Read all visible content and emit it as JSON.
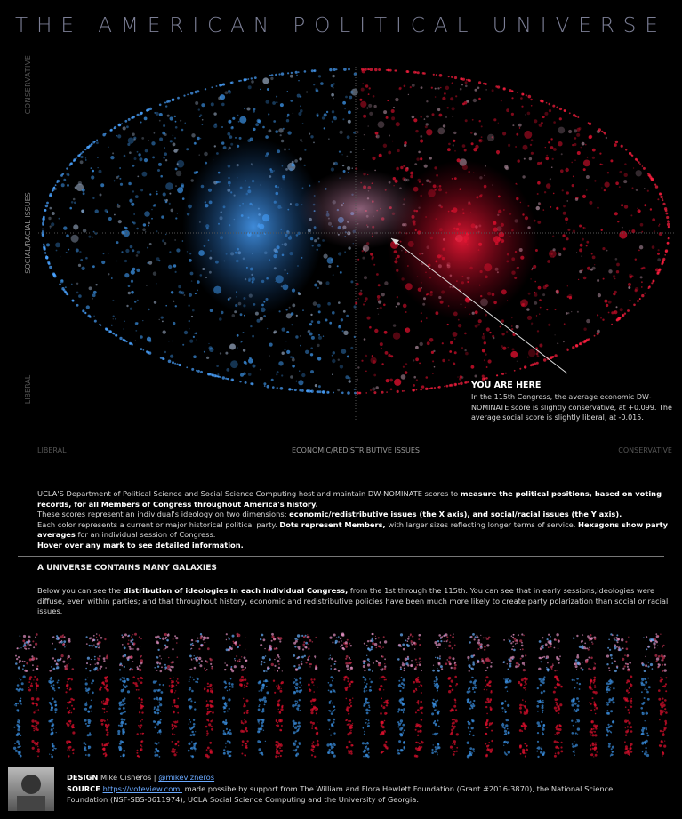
{
  "header": {
    "title": "THE AMERICAN POLITICAL UNIVERSE"
  },
  "main_chart": {
    "y_top_label": "CONSERVATIVE",
    "y_axis_label": "SOCIAL/RACIAL ISSUES",
    "y_bottom_label": "LIBERAL",
    "x_left_label": "LIBERAL",
    "x_axis_label": "ECONOMIC/REDISTRIBUTIVE ISSUES",
    "x_right_label": "CONSERVATIVE",
    "annotation": {
      "title": "YOU ARE HERE",
      "text": "In the 115th Congress, the average economic DW-NOMINATE score is slightly conservative, at +0.099. The average social score is slightly liberal, at -0.015."
    }
  },
  "intro": [
    [
      {
        "text": "UCLA'S Department of Political Science and Social Science Computing host and maintain DW-NOMINATE scores to ",
        "bold": false
      },
      {
        "text": "measure the political positions, based on voting records, for all Members of Congress throughout America's history.",
        "bold": true
      }
    ],
    [
      {
        "text": "These scores represent an individual's ideology on two dimensions: ",
        "bold": false
      },
      {
        "text": "economic/redistributive issues (the X axis), and social/racial issues (the Y axis).",
        "bold": true
      }
    ],
    [
      {
        "text": "Each color represents a current or major historical political party. ",
        "bold": false
      },
      {
        "text": "Dots represent Members,",
        "bold": true
      },
      {
        "text": " with larger sizes reflecting longer terms of service. ",
        "bold": false
      },
      {
        "text": "Hexagons show party averages",
        "bold": true
      },
      {
        "text": " for an individual session of Congress.",
        "bold": false
      }
    ],
    [
      {
        "text": "Hover over any mark to see detailed information.",
        "bold": true
      }
    ]
  ],
  "galaxies": {
    "heading": "A UNIVERSE CONTAINS MANY GALAXIES",
    "text": [
      {
        "text": "Below you can see the ",
        "bold": false
      },
      {
        "text": "distribution of ideologies in each individual Congress,",
        "bold": true
      },
      {
        "text": " from the 1st through the 115th. You can see that in early sessions,ideologies were diffuse, even within parties; and that throughout history, economic and  redistributive policies have been much more likely to create party polarization than social or racial issues.",
        "bold": false
      }
    ]
  },
  "footer": {
    "design": [
      {
        "text": "DESIGN",
        "bold": true
      },
      {
        "text": " Mike Cisneros | ",
        "bold": false
      },
      {
        "text": "@mikevizneros",
        "link": true
      }
    ],
    "source": [
      {
        "text": "SOURCE",
        "bold": true
      },
      {
        "text": " ",
        "bold": false
      },
      {
        "text": "https://voteview.com,",
        "link": true
      },
      {
        "text": " made possibe by support from The William and Flora Hewlett Foundation (Grant #2016-3870), the National Science Foundation (NSF-SBS-0611974), UCLA Social Science Computing and the University of Georgia.",
        "bold": false
      }
    ]
  }
}
